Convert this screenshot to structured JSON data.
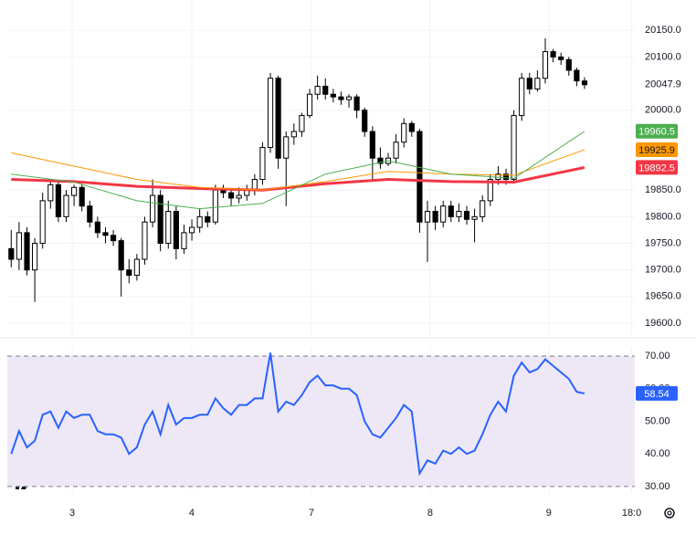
{
  "chart_data": [
    {
      "type": "candlestick",
      "xlim": [
        -0.5,
        79.4
      ],
      "xticks": [
        {
          "value": 7.76,
          "label": "3"
        },
        {
          "value": 22.99,
          "label": "4"
        },
        {
          "value": 38.22,
          "label": "7"
        },
        {
          "value": 53.34,
          "label": "8"
        },
        {
          "value": 68.45,
          "label": "9"
        },
        {
          "value": 79.0,
          "label": "18:0"
        }
      ],
      "ylim": [
        19576,
        20207
      ],
      "yticks": [
        {
          "value": 20150,
          "label": "20150.0"
        },
        {
          "value": 20100,
          "label": "20100.0"
        },
        {
          "value": 20000,
          "label": "20000.0"
        },
        {
          "value": 19850,
          "label": "19850.0"
        },
        {
          "value": 19800,
          "label": "19800.0"
        },
        {
          "value": 19750,
          "label": "19750.0"
        },
        {
          "value": 19700,
          "label": "19700.0"
        },
        {
          "value": 19650,
          "label": "19650.0"
        },
        {
          "value": 19600,
          "label": "19600.0"
        }
      ],
      "grid": true,
      "up_color": "#ffffff",
      "down_color": "#000000",
      "ohlc": [
        [
          19740,
          19775,
          19705,
          19720
        ],
        [
          19720,
          19790,
          19700,
          19770
        ],
        [
          19770,
          19780,
          19690,
          19700
        ],
        [
          19700,
          19760,
          19640,
          19750
        ],
        [
          19750,
          19845,
          19740,
          19830
        ],
        [
          19830,
          19870,
          19815,
          19860
        ],
        [
          19860,
          19865,
          19790,
          19800
        ],
        [
          19800,
          19850,
          19790,
          19840
        ],
        [
          19840,
          19860,
          19820,
          19855
        ],
        [
          19855,
          19860,
          19810,
          19820
        ],
        [
          19820,
          19830,
          19780,
          19790
        ],
        [
          19790,
          19800,
          19760,
          19770
        ],
        [
          19770,
          19780,
          19750,
          19765
        ],
        [
          19765,
          19775,
          19745,
          19755
        ],
        [
          19755,
          19760,
          19650,
          19700
        ],
        [
          19700,
          19720,
          19675,
          19690
        ],
        [
          19690,
          19730,
          19680,
          19720
        ],
        [
          19720,
          19800,
          19710,
          19790
        ],
        [
          19790,
          19870,
          19780,
          19840
        ],
        [
          19840,
          19850,
          19735,
          19750
        ],
        [
          19750,
          19830,
          19740,
          19810
        ],
        [
          19810,
          19820,
          19720,
          19740
        ],
        [
          19740,
          19785,
          19730,
          19770
        ],
        [
          19770,
          19795,
          19755,
          19780
        ],
        [
          19780,
          19815,
          19770,
          19800
        ],
        [
          19800,
          19810,
          19780,
          19790
        ],
        [
          19790,
          19860,
          19785,
          19850
        ],
        [
          19850,
          19860,
          19835,
          19845
        ],
        [
          19845,
          19850,
          19820,
          19835
        ],
        [
          19835,
          19855,
          19825,
          19840
        ],
        [
          19840,
          19860,
          19830,
          19850
        ],
        [
          19850,
          19880,
          19840,
          19870
        ],
        [
          19870,
          19940,
          19860,
          19930
        ],
        [
          19930,
          20070,
          19920,
          20060
        ],
        [
          20060,
          20065,
          19890,
          19910
        ],
        [
          19910,
          19960,
          19820,
          19950
        ],
        [
          19950,
          19975,
          19935,
          19960
        ],
        [
          19960,
          19995,
          19950,
          19990
        ],
        [
          19990,
          20040,
          19985,
          20030
        ],
        [
          20030,
          20065,
          20020,
          20045
        ],
        [
          20045,
          20060,
          20020,
          20030
        ],
        [
          20030,
          20040,
          20015,
          20025
        ],
        [
          20025,
          20035,
          20010,
          20020
        ],
        [
          20020,
          20030,
          20005,
          20025
        ],
        [
          20025,
          20030,
          19985,
          20000
        ],
        [
          20000,
          20005,
          19950,
          19960
        ],
        [
          19960,
          19970,
          19870,
          19910
        ],
        [
          19910,
          19930,
          19890,
          19900
        ],
        [
          19900,
          19920,
          19895,
          19910
        ],
        [
          19910,
          19955,
          19900,
          19940
        ],
        [
          19940,
          19985,
          19930,
          19975
        ],
        [
          19975,
          19980,
          19950,
          19960
        ],
        [
          19960,
          19965,
          19770,
          19790
        ],
        [
          19790,
          19830,
          19715,
          19810
        ],
        [
          19810,
          19820,
          19775,
          19790
        ],
        [
          19790,
          19830,
          19780,
          19820
        ],
        [
          19820,
          19830,
          19790,
          19800
        ],
        [
          19800,
          19825,
          19790,
          19810
        ],
        [
          19810,
          19820,
          19785,
          19795
        ],
        [
          19795,
          19815,
          19752,
          19800
        ],
        [
          19800,
          19840,
          19790,
          19830
        ],
        [
          19830,
          19880,
          19820,
          19870
        ],
        [
          19870,
          19895,
          19860,
          19880
        ],
        [
          19880,
          19890,
          19860,
          19870
        ],
        [
          19870,
          20000,
          19865,
          19990
        ],
        [
          19990,
          20070,
          19980,
          20060
        ],
        [
          20060,
          20070,
          20030,
          20040
        ],
        [
          20040,
          20075,
          20035,
          20060
        ],
        [
          20060,
          20135,
          20050,
          20110
        ],
        [
          20110,
          20115,
          20090,
          20100
        ],
        [
          20100,
          20108,
          20085,
          20095
        ],
        [
          20095,
          20100,
          20065,
          20075
        ],
        [
          20075,
          20080,
          20045,
          20055
        ],
        [
          20055,
          20062,
          20040,
          20047.9
        ]
      ],
      "ma_x": [
        0,
        8,
        16,
        24,
        32,
        40,
        48,
        56,
        64,
        73
      ],
      "moving_averages": [
        {
          "color": "#f23645",
          "width": 3,
          "values": [
            19870,
            19866,
            19857,
            19853,
            19850,
            19862,
            19870,
            19866,
            19865,
            19892.5
          ]
        },
        {
          "color": "#ff9800",
          "width": 1,
          "values": [
            19920,
            19895,
            19870,
            19855,
            19850,
            19866,
            19885,
            19880,
            19878,
            19925.9
          ]
        },
        {
          "color": "#4caf50",
          "width": 1,
          "values": [
            19880,
            19865,
            19830,
            19815,
            19825,
            19880,
            19905,
            19880,
            19872,
            19960.5
          ]
        }
      ]
    },
    {
      "type": "line",
      "xlim": [
        -0.5,
        79.4
      ],
      "ylim": [
        28,
        72.8
      ],
      "yticks": [
        {
          "value": 70,
          "label": "70.00"
        },
        {
          "value": 60,
          "label": "60.00"
        },
        {
          "value": 50,
          "label": "50.00"
        },
        {
          "value": 40,
          "label": "40.00"
        },
        {
          "value": 30,
          "label": "30.00"
        }
      ],
      "band": [
        30,
        70
      ],
      "band_color": "#ede7f6",
      "color": "#2962ff",
      "values": [
        40,
        47,
        42,
        44,
        52,
        53,
        48,
        53,
        51,
        52,
        52,
        47,
        46,
        46,
        45,
        40,
        42,
        49,
        53,
        46,
        55,
        49,
        51,
        51,
        52,
        52,
        57,
        54,
        52,
        55,
        55,
        57,
        57,
        71,
        53,
        56,
        55,
        58,
        62,
        64,
        61,
        61,
        60,
        60,
        58,
        50,
        46,
        45,
        48,
        51,
        55,
        53,
        34,
        38,
        37,
        41,
        40,
        42,
        40,
        41,
        46,
        52,
        56,
        53,
        64,
        68,
        65,
        66,
        69,
        67,
        65,
        63,
        59,
        58.54
      ]
    }
  ]
}
